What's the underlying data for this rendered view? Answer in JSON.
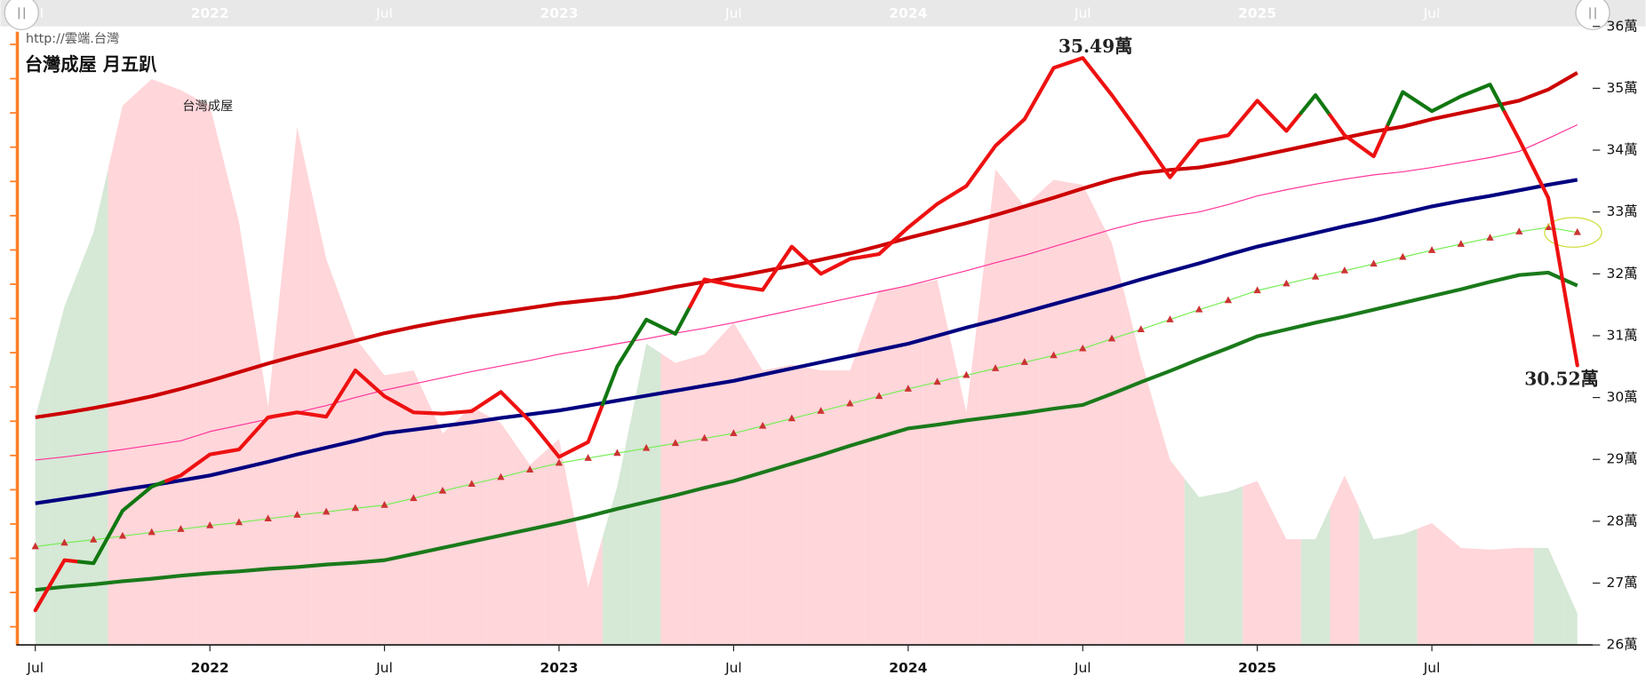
{
  "chart_data": {
    "type": "line",
    "source": "http://雲端.台灣",
    "title": "台灣成屋 月五趴",
    "x": [
      "2021-07",
      "2021-08",
      "2021-09",
      "2021-10",
      "2021-11",
      "2021-12",
      "2022-01",
      "2022-02",
      "2022-03",
      "2022-04",
      "2022-05",
      "2022-06",
      "2022-07",
      "2022-08",
      "2022-09",
      "2022-10",
      "2022-11",
      "2022-12",
      "2023-01",
      "2023-02",
      "2023-03",
      "2023-04",
      "2023-05",
      "2023-06",
      "2023-07",
      "2023-08",
      "2023-09",
      "2023-10",
      "2023-11",
      "2023-12",
      "2024-01",
      "2024-02",
      "2024-03",
      "2024-04",
      "2024-05",
      "2024-06",
      "2024-07",
      "2024-08",
      "2024-09",
      "2024-10",
      "2024-11",
      "2024-12",
      "2025-01",
      "2025-02",
      "2025-03",
      "2025-04",
      "2025-05",
      "2025-06",
      "2025-07",
      "2025-08",
      "2025-09",
      "2025-10",
      "2025-11",
      "2025-12"
    ],
    "xticks": [
      {
        "value": "2021-07",
        "label": "Jul"
      },
      {
        "value": "2022-01",
        "label": "2022"
      },
      {
        "value": "2022-07",
        "label": "Jul"
      },
      {
        "value": "2023-01",
        "label": "2023"
      },
      {
        "value": "2023-07",
        "label": "Jul"
      },
      {
        "value": "2024-01",
        "label": "2024"
      },
      {
        "value": "2024-07",
        "label": "Jul"
      },
      {
        "value": "2025-01",
        "label": "2025"
      },
      {
        "value": "2025-07",
        "label": "Jul"
      }
    ],
    "ylim": [
      26,
      36
    ],
    "yticks": [
      {
        "value": 26,
        "label": "26萬"
      },
      {
        "value": 27,
        "label": "27萬"
      },
      {
        "value": 28,
        "label": "28萬"
      },
      {
        "value": 29,
        "label": "29萬"
      },
      {
        "value": 30,
        "label": "30萬"
      },
      {
        "value": 31,
        "label": "31萬"
      },
      {
        "value": 32,
        "label": "32萬"
      },
      {
        "value": 33,
        "label": "33萬"
      },
      {
        "value": 34,
        "label": "34萬"
      },
      {
        "value": 35,
        "label": "35萬"
      },
      {
        "value": 36,
        "label": "36萬"
      }
    ],
    "area": {
      "name": "台灣成屋",
      "values": [
        29.68,
        31.47,
        32.67,
        34.72,
        35.15,
        34.97,
        34.72,
        32.84,
        29.85,
        34.38,
        32.24,
        30.96,
        30.36,
        30.44,
        29.42,
        29.85,
        29.59,
        28.91,
        29.33,
        26.94,
        28.56,
        30.87,
        30.56,
        30.7,
        31.21,
        30.44,
        30.53,
        30.44,
        30.44,
        31.73,
        31.81,
        31.9,
        29.76,
        33.69,
        33.09,
        33.52,
        33.44,
        32.5,
        30.62,
        28.99,
        28.39,
        28.48,
        28.65,
        27.71,
        27.71,
        28.74,
        27.71,
        27.79,
        27.97,
        27.57,
        27.54,
        27.57,
        27.57,
        26.51
      ],
      "colors": [
        "#d6e8d6",
        "#d6e8d6",
        "#d6e8d6",
        "#ffd6da",
        "#ffd6da",
        "#ffd6da",
        "#ffd6da",
        "#ffd6da",
        "#ffd6da",
        "#ffd6da",
        "#ffd6da",
        "#ffd6da",
        "#ffd6da",
        "#ffd6da",
        "#ffd6da",
        "#ffd6da",
        "#ffd6da",
        "#ffd6da",
        "#ffd6da",
        "#ffd6da",
        "#d6e8d6",
        "#d6e8d6",
        "#ffd6da",
        "#ffd6da",
        "#ffd6da",
        "#ffd6da",
        "#ffd6da",
        "#ffd6da",
        "#ffd6da",
        "#ffd6da",
        "#ffd6da",
        "#ffd6da",
        "#ffd6da",
        "#ffd6da",
        "#ffd6da",
        "#ffd6da",
        "#ffd6da",
        "#ffd6da",
        "#ffd6da",
        "#ffd6da",
        "#d6e8d6",
        "#d6e8d6",
        "#ffd6da",
        "#ffd6da",
        "#d6e8d6",
        "#ffd6da",
        "#d6e8d6",
        "#d6e8d6",
        "#ffd6da",
        "#ffd6da",
        "#ffd6da",
        "#ffd6da",
        "#d6e8d6",
        "#d6e8d6"
      ]
    },
    "series": [
      {
        "color": "#cc0000",
        "values": [
          29.68,
          29.75,
          29.83,
          29.92,
          30.02,
          30.14,
          30.27,
          30.41,
          30.55,
          30.68,
          30.8,
          30.92,
          31.04,
          31.14,
          31.23,
          31.31,
          31.38,
          31.45,
          31.52,
          31.57,
          31.62,
          31.7,
          31.79,
          31.87,
          31.95,
          32.04,
          32.13,
          32.23,
          32.33,
          32.45,
          32.58,
          32.7,
          32.82,
          32.95,
          33.09,
          33.23,
          33.38,
          33.52,
          33.63,
          33.68,
          33.72,
          33.8,
          33.9,
          34.0,
          34.1,
          34.2,
          34.3,
          34.38,
          34.5,
          34.6,
          34.7,
          34.8,
          34.98,
          35.25
        ]
      },
      {
        "color": "#ff3399",
        "values": [
          28.99,
          29.04,
          29.1,
          29.16,
          29.23,
          29.3,
          29.45,
          29.55,
          29.65,
          29.76,
          29.87,
          30.0,
          30.12,
          30.22,
          30.32,
          30.42,
          30.51,
          30.6,
          30.7,
          30.78,
          30.87,
          30.95,
          31.04,
          31.12,
          31.21,
          31.31,
          31.41,
          31.51,
          31.61,
          31.71,
          31.81,
          31.93,
          32.05,
          32.18,
          32.3,
          32.44,
          32.58,
          32.72,
          32.84,
          32.93,
          33.0,
          33.12,
          33.26,
          33.36,
          33.45,
          33.53,
          33.6,
          33.65,
          33.72,
          33.8,
          33.88,
          33.98,
          34.19,
          34.41
        ]
      },
      {
        "color": "#000080",
        "values": [
          28.29,
          28.36,
          28.43,
          28.51,
          28.58,
          28.66,
          28.74,
          28.85,
          28.96,
          29.08,
          29.19,
          29.3,
          29.42,
          29.48,
          29.54,
          29.6,
          29.67,
          29.73,
          29.79,
          29.87,
          29.95,
          30.03,
          30.11,
          30.19,
          30.27,
          30.37,
          30.47,
          30.57,
          30.67,
          30.77,
          30.87,
          31.0,
          31.13,
          31.25,
          31.38,
          31.51,
          31.64,
          31.77,
          31.91,
          32.04,
          32.17,
          32.31,
          32.44,
          32.55,
          32.66,
          32.77,
          32.87,
          32.98,
          33.09,
          33.18,
          33.26,
          33.35,
          33.44,
          33.52
        ]
      },
      {
        "color": "#77ee55",
        "marker": "triangle",
        "marker_color": "#cc3333",
        "highlight_last": true,
        "highlight_color": "#ccdd33",
        "values": [
          27.59,
          27.65,
          27.7,
          27.76,
          27.82,
          27.87,
          27.93,
          27.98,
          28.04,
          28.1,
          28.15,
          28.21,
          28.26,
          28.37,
          28.49,
          28.6,
          28.71,
          28.83,
          28.94,
          29.02,
          29.1,
          29.18,
          29.26,
          29.34,
          29.42,
          29.54,
          29.66,
          29.78,
          29.9,
          30.02,
          30.14,
          30.25,
          30.36,
          30.47,
          30.57,
          30.68,
          30.79,
          30.95,
          31.1,
          31.26,
          31.42,
          31.57,
          31.73,
          31.84,
          31.95,
          32.05,
          32.16,
          32.27,
          32.38,
          32.48,
          32.58,
          32.68,
          32.75,
          32.67
        ]
      },
      {
        "color": "#1a7a1a",
        "values": [
          26.89,
          26.94,
          26.98,
          27.03,
          27.07,
          27.12,
          27.16,
          27.19,
          27.23,
          27.26,
          27.3,
          27.33,
          27.37,
          27.47,
          27.57,
          27.67,
          27.77,
          27.87,
          27.97,
          28.08,
          28.2,
          28.31,
          28.42,
          28.54,
          28.65,
          28.79,
          28.93,
          29.07,
          29.22,
          29.36,
          29.5,
          29.56,
          29.63,
          29.69,
          29.75,
          29.82,
          29.88,
          30.06,
          30.25,
          30.43,
          30.62,
          30.8,
          30.99,
          31.1,
          31.21,
          31.31,
          31.42,
          31.53,
          31.64,
          31.75,
          31.87,
          31.98,
          32.02,
          31.81
        ]
      },
      {
        "color": "#ee1111",
        "values": [
          26.56,
          27.37,
          27.32,
          28.17,
          28.56,
          28.74,
          29.08,
          29.16,
          29.68,
          29.76,
          29.69,
          30.44,
          30.02,
          29.76,
          29.74,
          29.78,
          30.09,
          29.62,
          29.04,
          29.28,
          30.5,
          31.26,
          31.03,
          31.91,
          31.81,
          31.74,
          32.44,
          32.0,
          32.24,
          32.32,
          32.75,
          33.13,
          33.42,
          34.07,
          34.5,
          35.33,
          35.49,
          34.89,
          34.24,
          33.56,
          34.15,
          34.24,
          34.8,
          34.31,
          34.89,
          34.24,
          33.9,
          34.94,
          34.63,
          34.87,
          35.06,
          34.17,
          33.23,
          30.52
        ],
        "colors": [
          "#ee1111",
          "#ee1111",
          "#117711",
          "#117711",
          "#117711",
          "#ee1111",
          "#ee1111",
          "#ee1111",
          "#ee1111",
          "#ee1111",
          "#ee1111",
          "#ee1111",
          "#ee1111",
          "#ee1111",
          "#ee1111",
          "#ee1111",
          "#ee1111",
          "#ee1111",
          "#ee1111",
          "#ee1111",
          "#117711",
          "#117711",
          "#117711",
          "#ee1111",
          "#ee1111",
          "#ee1111",
          "#ee1111",
          "#ee1111",
          "#ee1111",
          "#ee1111",
          "#ee1111",
          "#ee1111",
          "#ee1111",
          "#ee1111",
          "#ee1111",
          "#ee1111",
          "#ee1111",
          "#ee1111",
          "#ee1111",
          "#ee1111",
          "#ee1111",
          "#ee1111",
          "#ee1111",
          "#ee1111",
          "#117711",
          "#ee1111",
          "#ee1111",
          "#117711",
          "#117711",
          "#117711",
          "#117711",
          "#ee1111",
          "#ee1111",
          "#ee1111"
        ],
        "value_labels": [
          null,
          null,
          null,
          null,
          null,
          null,
          null,
          null,
          null,
          null,
          null,
          null,
          null,
          null,
          null,
          null,
          null,
          null,
          null,
          null,
          null,
          null,
          null,
          null,
          null,
          null,
          null,
          null,
          null,
          null,
          null,
          null,
          null,
          null,
          null,
          null,
          "35.49萬",
          null,
          null,
          null,
          null,
          null,
          null,
          null,
          null,
          null,
          null,
          null,
          null,
          null,
          null,
          null,
          null,
          "30.52萬"
        ]
      }
    ]
  }
}
